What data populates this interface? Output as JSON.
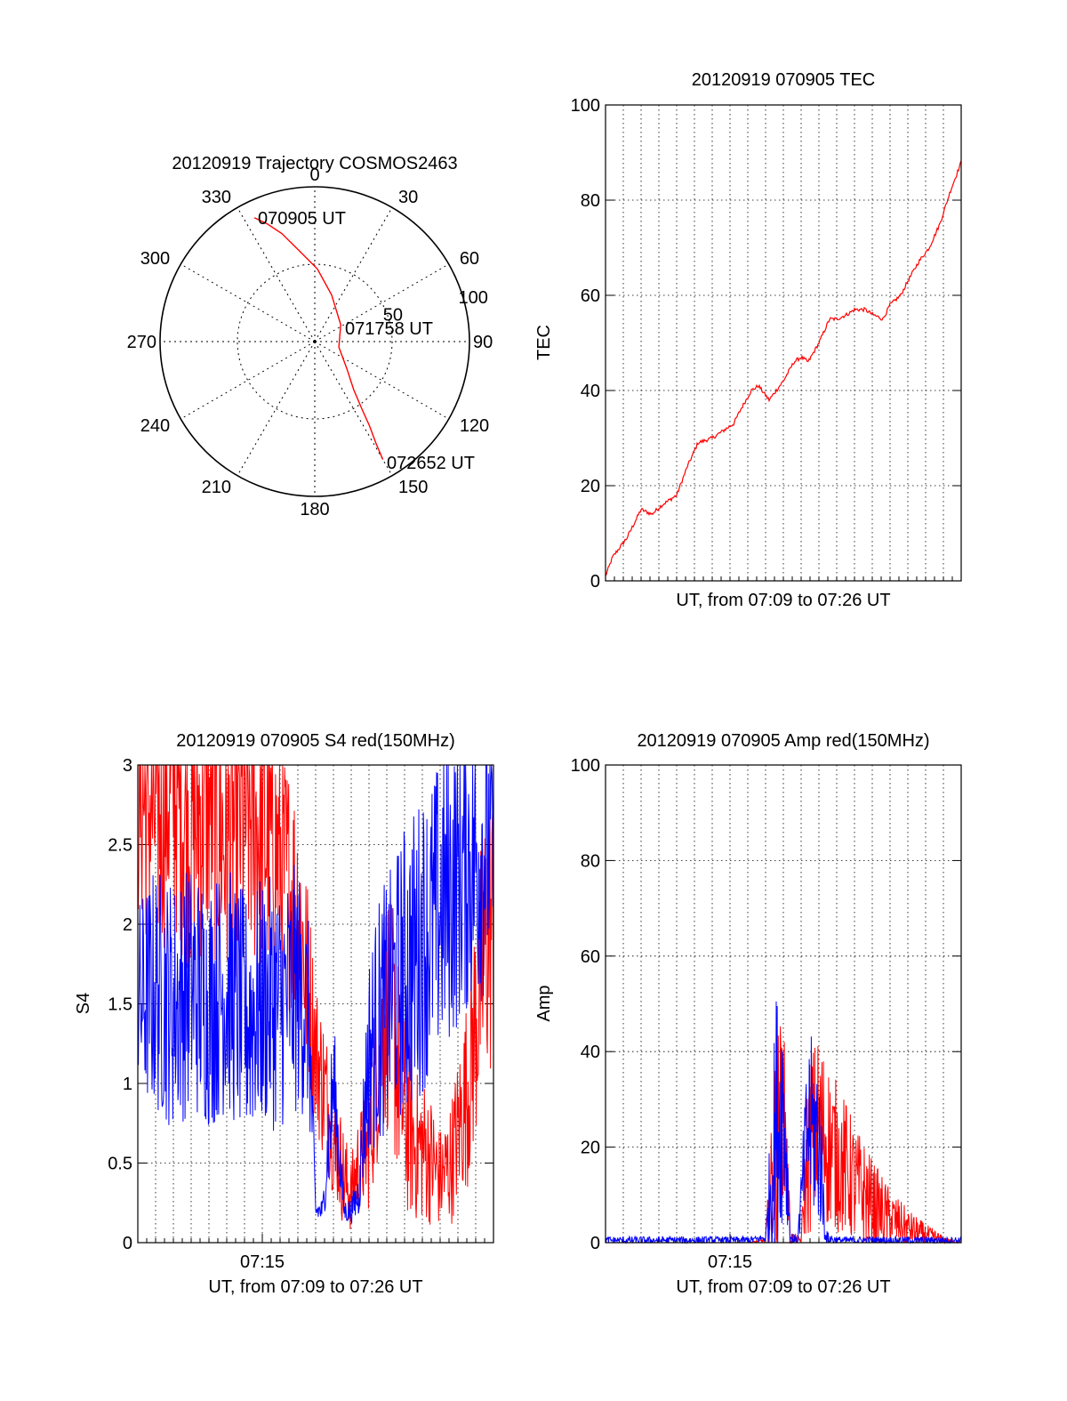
{
  "colors": {
    "red": "#ff0000",
    "blue": "#0000ff",
    "axis": "#000000",
    "grid": "#000000"
  },
  "chart_data": [
    {
      "type": "polar",
      "title": "20120919 Trajectory COSMOS2463",
      "angle_labels": [
        "0",
        "30",
        "60",
        "90",
        "120",
        "150",
        "180",
        "210",
        "240",
        "270",
        "300",
        "330"
      ],
      "radial_labels": [
        "50",
        "100"
      ],
      "radial_range": [
        0,
        100
      ],
      "series": [
        {
          "color": "red",
          "points": [
            [
              334,
              89
            ],
            [
              338,
              82
            ],
            [
              343,
              73
            ],
            [
              350,
              60
            ],
            [
              2,
              47
            ],
            [
              20,
              32
            ],
            [
              57,
              20
            ],
            [
              103,
              16
            ],
            [
              130,
              27
            ],
            [
              141,
              40
            ],
            [
              145,
              53
            ],
            [
              147,
              65
            ],
            [
              149,
              77
            ],
            [
              150,
              88
            ]
          ]
        }
      ],
      "annotations": [
        "070905 UT",
        "071758 UT",
        "072652 UT"
      ]
    },
    {
      "type": "line",
      "title": "20120919 070905 TEC",
      "xlabel": "UT, from 07:09 to 07:26 UT",
      "ylabel": "TEC",
      "ylim": [
        0,
        100
      ],
      "yticks": [
        "0",
        "20",
        "40",
        "60",
        "80",
        "100"
      ],
      "grid": true,
      "series": [
        {
          "color": "red",
          "x": [
            0,
            0.02,
            0.06,
            0.1,
            0.13,
            0.16,
            0.2,
            0.23,
            0.26,
            0.3,
            0.34,
            0.36,
            0.38,
            0.41,
            0.43,
            0.46,
            0.48,
            0.5,
            0.53,
            0.55,
            0.57,
            0.6,
            0.63,
            0.65,
            0.68,
            0.7,
            0.73,
            0.75,
            0.78,
            0.8,
            0.83,
            0.85,
            0.88,
            0.91,
            0.94,
            0.97,
            1.0
          ],
          "y": [
            1,
            5,
            9,
            15,
            14,
            16,
            18,
            24,
            29,
            30,
            32,
            33,
            36,
            40,
            41,
            38,
            40,
            42,
            46,
            47,
            46,
            50,
            55,
            55,
            56,
            57,
            57,
            56,
            55,
            58,
            60,
            63,
            67,
            70,
            75,
            82,
            88
          ]
        }
      ]
    },
    {
      "type": "line",
      "title": "20120919 070905 S4 red(150MHz)",
      "xlabel": "UT, from 07:09 to 07:26 UT",
      "ylabel": "S4",
      "ylim": [
        0,
        3
      ],
      "yticks": [
        "0",
        "0.5",
        "1",
        "1.5",
        "2",
        "2.5",
        "3"
      ],
      "xticks": [
        {
          "x": 0.35,
          "label": "07:15"
        }
      ],
      "grid": true,
      "series": [
        {
          "color": "red",
          "x": [
            0,
            0.05,
            0.1,
            0.15,
            0.2,
            0.25,
            0.3,
            0.35,
            0.4,
            0.45,
            0.48,
            0.5,
            0.52,
            0.55,
            0.58,
            0.6,
            0.62,
            0.65,
            0.68,
            0.7,
            0.72,
            0.75,
            0.78,
            0.8,
            0.83,
            0.85,
            0.88,
            0.9,
            0.93,
            0.95,
            0.98,
            1.0
          ],
          "y": [
            2.8,
            2.7,
            2.9,
            2.6,
            2.8,
            2.5,
            2.7,
            2.6,
            2.4,
            2.1,
            1.6,
            1.2,
            1.0,
            0.7,
            0.4,
            0.3,
            0.5,
            0.6,
            1.2,
            1.5,
            1.3,
            0.8,
            0.6,
            0.6,
            0.5,
            0.4,
            0.5,
            0.7,
            1.0,
            1.4,
            1.9,
            2.0
          ],
          "spread": [
            0.5,
            0.6,
            0.6,
            0.6,
            0.6,
            0.6,
            0.6,
            0.6,
            0.5,
            0.5,
            0.4,
            0.3,
            0.3,
            0.25,
            0.2,
            0.15,
            0.2,
            0.25,
            0.4,
            0.5,
            0.5,
            0.4,
            0.3,
            0.3,
            0.25,
            0.2,
            0.25,
            0.3,
            0.4,
            0.5,
            0.6,
            0.6
          ]
        },
        {
          "color": "blue",
          "x": [
            0,
            0.05,
            0.1,
            0.15,
            0.2,
            0.25,
            0.3,
            0.35,
            0.4,
            0.45,
            0.48,
            0.5,
            0.52,
            0.55,
            0.58,
            0.6,
            0.62,
            0.65,
            0.68,
            0.7,
            0.72,
            0.75,
            0.78,
            0.8,
            0.83,
            0.85,
            0.88,
            0.9,
            0.93,
            0.95,
            0.98,
            1.0
          ],
          "y": [
            1.5,
            1.6,
            1.5,
            1.6,
            1.5,
            1.6,
            1.4,
            1.5,
            1.5,
            1.6,
            1.4,
            0.2,
            0.2,
            1.0,
            0.2,
            0.2,
            0.3,
            1.2,
            1.4,
            1.5,
            1.6,
            1.7,
            1.8,
            1.9,
            2.0,
            2.1,
            2.2,
            2.3,
            2.4,
            2.4,
            2.5,
            2.5
          ],
          "spread": [
            0.4,
            0.5,
            0.5,
            0.5,
            0.5,
            0.5,
            0.5,
            0.5,
            0.5,
            0.5,
            0.4,
            0.05,
            0.05,
            0.3,
            0.05,
            0.05,
            0.1,
            0.4,
            0.5,
            0.5,
            0.5,
            0.6,
            0.6,
            0.6,
            0.6,
            0.6,
            0.6,
            0.6,
            0.6,
            0.6,
            0.6,
            0.5
          ]
        }
      ]
    },
    {
      "type": "line",
      "title": "20120919 070905 Amp red(150MHz)",
      "xlabel": "UT, from 07:09 to 07:26 UT",
      "ylabel": "Amp",
      "ylim": [
        0,
        100
      ],
      "yticks": [
        "0",
        "20",
        "40",
        "60",
        "80",
        "100"
      ],
      "xticks": [
        {
          "x": 0.35,
          "label": "07:15"
        }
      ],
      "grid": true,
      "series": [
        {
          "color": "red",
          "x": [
            0,
            0.1,
            0.2,
            0.3,
            0.4,
            0.45,
            0.48,
            0.5,
            0.52,
            0.55,
            0.57,
            0.6,
            0.63,
            0.65,
            0.68,
            0.7,
            0.73,
            0.75,
            0.78,
            0.8,
            0.83,
            0.85,
            0.88,
            0.9,
            0.93,
            0.95,
            1.0
          ],
          "y": [
            0,
            0,
            0,
            0,
            0,
            0.5,
            20,
            30,
            1,
            0.5,
            20,
            25,
            20,
            18,
            15,
            12,
            10,
            8,
            6,
            5,
            4,
            3,
            2,
            1.5,
            1,
            0.5,
            0
          ],
          "spread": [
            0,
            0,
            0,
            0,
            0,
            0.3,
            15,
            12,
            1,
            0.3,
            12,
            12,
            11,
            10,
            9,
            8,
            7,
            6,
            5,
            4,
            3,
            2.5,
            2,
            1.5,
            1,
            0.5,
            0
          ]
        },
        {
          "color": "blue",
          "x": [
            0,
            0.05,
            0.1,
            0.15,
            0.2,
            0.25,
            0.3,
            0.35,
            0.4,
            0.45,
            0.48,
            0.5,
            0.52,
            0.54,
            0.57,
            0.6,
            0.62,
            0.65,
            0.7,
            0.8,
            0.9,
            1.0
          ],
          "y": [
            0.5,
            0.5,
            0.5,
            0.5,
            0.5,
            0.5,
            0.5,
            0.5,
            0.5,
            1,
            25,
            30,
            1,
            0.5,
            25,
            22,
            1,
            0.5,
            0.5,
            0.5,
            0.5,
            0.5
          ],
          "spread": [
            0.5,
            0.5,
            0.5,
            0.5,
            0.5,
            0.5,
            0.5,
            0.5,
            0.5,
            0.5,
            18,
            15,
            1,
            0.3,
            12,
            12,
            1,
            0.5,
            0.5,
            0.5,
            0.5,
            0.5
          ]
        }
      ]
    }
  ]
}
